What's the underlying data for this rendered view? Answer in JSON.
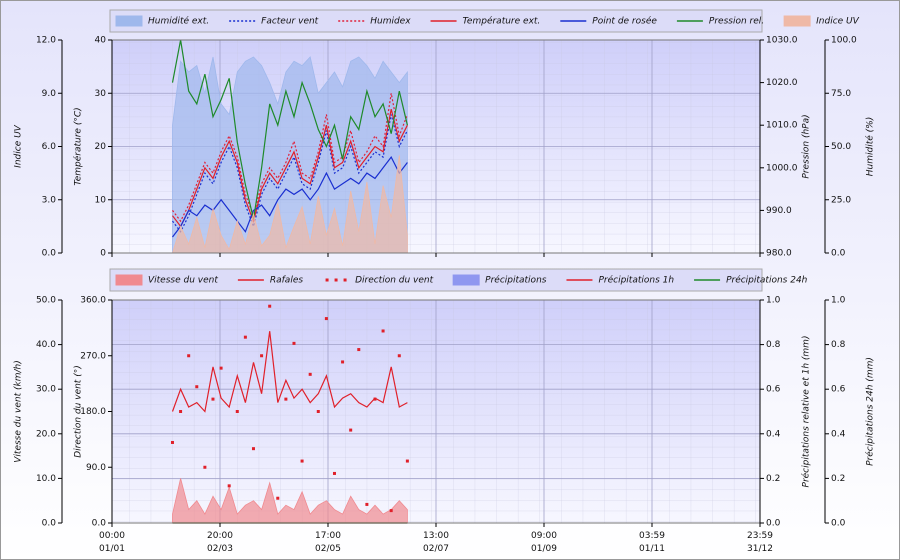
{
  "chart_data": [
    {
      "type": "line",
      "x": [
        0.56,
        0.635,
        0.71,
        0.785,
        0.86,
        0.935,
        1.01,
        1.085,
        1.16,
        1.235,
        1.31,
        1.385,
        1.46,
        1.535,
        1.61,
        1.685,
        1.76,
        1.835,
        1.91,
        1.985,
        2.06,
        2.135,
        2.21,
        2.285,
        2.36,
        2.435,
        2.51,
        2.585,
        2.66,
        2.735
      ],
      "xlim": [
        0,
        6
      ],
      "xticks": [
        {
          "value": 0,
          "label": "00:00 01/01"
        },
        {
          "value": 1,
          "label": "20:00 02/03"
        },
        {
          "value": 2,
          "label": "17:00 02/05"
        },
        {
          "value": 3,
          "label": "13:00 02/07"
        },
        {
          "value": 4,
          "label": "09:00 01/09"
        },
        {
          "value": 5,
          "label": "03:59 01/11"
        },
        {
          "value": 6,
          "label": "23:59 31/12"
        }
      ],
      "axes": [
        {
          "label": "Indice UV",
          "ylim": [
            0,
            12
          ],
          "yticks": [
            {
              "value": 0,
              "label": "0.0"
            },
            {
              "value": 3,
              "label": "3.0"
            },
            {
              "value": 6,
              "label": "6.0"
            },
            {
              "value": 9,
              "label": "9.0"
            },
            {
              "value": 12,
              "label": "12.0"
            }
          ]
        },
        {
          "label": "Température (°C)",
          "ylim": [
            0,
            40
          ],
          "yticks": [
            0,
            10,
            20,
            30,
            40
          ]
        },
        {
          "label": "Pression (hPa)",
          "ylim": [
            980,
            1030
          ],
          "yticks": [
            {
              "value": 980,
              "label": "980.0"
            },
            {
              "value": 990,
              "label": "990.0"
            },
            {
              "value": 1000,
              "label": "1000.0"
            },
            {
              "value": 1010,
              "label": "1010.0"
            },
            {
              "value": 1020,
              "label": "1020.0"
            },
            {
              "value": 1030,
              "label": "1030.0"
            }
          ]
        },
        {
          "label": "Humidité (%)",
          "ylim": [
            0,
            100
          ],
          "yticks": [
            {
              "value": 0,
              "label": "0.0"
            },
            {
              "value": 25,
              "label": "25.0"
            },
            {
              "value": 50,
              "label": "50.0"
            },
            {
              "value": 75,
              "label": "75.0"
            },
            {
              "value": 100,
              "label": "100.0"
            }
          ]
        }
      ],
      "grid": true,
      "series": [
        {
          "name": "Humidité ext.",
          "color": "#9fb8ec",
          "style": "area",
          "axis": 3,
          "values": [
            60,
            90,
            85,
            88,
            75,
            92,
            70,
            65,
            85,
            90,
            92,
            88,
            80,
            70,
            85,
            90,
            88,
            92,
            75,
            80,
            85,
            78,
            90,
            92,
            88,
            82,
            90,
            85,
            80,
            85
          ]
        },
        {
          "name": "Facteur vent",
          "color": "#1a2fd0",
          "style": "dotted",
          "axis": 1,
          "values": [
            6,
            4,
            7,
            11,
            15,
            13,
            17,
            20,
            16,
            9,
            5,
            11,
            14,
            12,
            15,
            18,
            13,
            12,
            17,
            23,
            15,
            16,
            20,
            15,
            17,
            19,
            18,
            26,
            20,
            23
          ]
        },
        {
          "name": "Humidex",
          "color": "#e0203a",
          "style": "dotted",
          "axis": 1,
          "values": [
            8,
            6,
            9,
            13,
            17,
            15,
            19,
            22,
            18,
            11,
            7,
            13,
            16,
            14,
            17,
            21,
            15,
            14,
            19,
            26,
            17,
            18,
            23,
            17,
            19,
            22,
            20,
            30,
            22,
            26
          ]
        },
        {
          "name": "Température ext.",
          "color": "#e0202a",
          "style": "line",
          "axis": 1,
          "values": [
            7,
            5,
            8,
            12,
            16,
            14,
            18,
            21,
            17,
            10,
            6,
            12,
            15,
            13,
            16,
            19,
            14,
            13,
            18,
            24,
            16,
            17,
            21,
            16,
            18,
            20,
            19,
            27,
            21,
            24
          ]
        },
        {
          "name": "Point de rosée",
          "color": "#1a2fd0",
          "style": "line",
          "axis": 1,
          "values": [
            3,
            5,
            8,
            7,
            9,
            8,
            10,
            8,
            6,
            4,
            8,
            9,
            7,
            10,
            12,
            11,
            12,
            10,
            12,
            15,
            12,
            13,
            14,
            13,
            15,
            14,
            16,
            18,
            15,
            17
          ]
        },
        {
          "name": "Pression rel.",
          "color": "#1e8a2a",
          "style": "line",
          "axis": 2,
          "values": [
            1020,
            1030,
            1018,
            1015,
            1022,
            1012,
            1016,
            1021,
            1006,
            996,
            988,
            1000,
            1015,
            1010,
            1018,
            1012,
            1020,
            1015,
            1009,
            1005,
            1010,
            1002,
            1012,
            1009,
            1018,
            1012,
            1015,
            1008,
            1018,
            1010
          ]
        },
        {
          "name": "Indice UV",
          "color": "#efb9a6",
          "style": "area",
          "axis": 0,
          "values": [
            0,
            1.5,
            0.5,
            2,
            0.3,
            2.5,
            1,
            0.2,
            1.8,
            0.5,
            2.2,
            0.4,
            1,
            2.8,
            0.3,
            1.5,
            2.6,
            0.5,
            3.2,
            1,
            2.5,
            0.4,
            3.5,
            1.2,
            4,
            0.5,
            3.8,
            2,
            5.5,
            1
          ]
        }
      ]
    },
    {
      "type": "line",
      "x": [
        0.56,
        0.635,
        0.71,
        0.785,
        0.86,
        0.935,
        1.01,
        1.085,
        1.16,
        1.235,
        1.31,
        1.385,
        1.46,
        1.535,
        1.61,
        1.685,
        1.76,
        1.835,
        1.91,
        1.985,
        2.06,
        2.135,
        2.21,
        2.285,
        2.36,
        2.435,
        2.51,
        2.585,
        2.66,
        2.735
      ],
      "xlim": [
        0,
        6
      ],
      "xticks": [
        {
          "value": 0,
          "label": "00:00 01/01"
        },
        {
          "value": 1,
          "label": "20:00 02/03"
        },
        {
          "value": 2,
          "label": "17:00 02/05"
        },
        {
          "value": 3,
          "label": "13:00 02/07"
        },
        {
          "value": 4,
          "label": "09:00 01/09"
        },
        {
          "value": 5,
          "label": "03:59 01/11"
        },
        {
          "value": 6,
          "label": "23:59 31/12"
        }
      ],
      "axes": [
        {
          "label": "Vitesse du vent (km/h)",
          "ylim": [
            0,
            50
          ],
          "yticks": [
            {
              "value": 0,
              "label": "0.0"
            },
            {
              "value": 10,
              "label": "10.0"
            },
            {
              "value": 20,
              "label": "20.0"
            },
            {
              "value": 30,
              "label": "30.0"
            },
            {
              "value": 40,
              "label": "40.0"
            },
            {
              "value": 50,
              "label": "50.0"
            }
          ]
        },
        {
          "label": "Direction du vent (°)",
          "ylim": [
            0,
            360
          ],
          "yticks": [
            {
              "value": 0,
              "label": "0.0"
            },
            {
              "value": 90,
              "label": "90.0"
            },
            {
              "value": 180,
              "label": "180.0"
            },
            {
              "value": 270,
              "label": "270.0"
            },
            {
              "value": 360,
              "label": "360.0"
            }
          ]
        },
        {
          "label": "Précipitations relative et 1h (mm)",
          "ylim": [
            0,
            1
          ],
          "yticks": [
            {
              "value": 0,
              "label": "0.0"
            },
            {
              "value": 0.2,
              "label": "0.2"
            },
            {
              "value": 0.4,
              "label": "0.4"
            },
            {
              "value": 0.6,
              "label": "0.6"
            },
            {
              "value": 0.8,
              "label": "0.8"
            },
            {
              "value": 1,
              "label": "1.0"
            }
          ]
        },
        {
          "label": "Précipitations 24h (mm)",
          "ylim": [
            0,
            1
          ],
          "yticks": [
            {
              "value": 0,
              "label": "0.0"
            },
            {
              "value": 0.2,
              "label": "0.2"
            },
            {
              "value": 0.4,
              "label": "0.4"
            },
            {
              "value": 0.6,
              "label": "0.6"
            },
            {
              "value": 0.8,
              "label": "0.8"
            },
            {
              "value": 1,
              "label": "1.0"
            }
          ]
        }
      ],
      "grid": true,
      "series": [
        {
          "name": "Vitesse du vent",
          "color": "#f08a90",
          "style": "area",
          "axis": 0,
          "values": [
            2,
            10,
            3,
            5,
            2,
            6,
            3,
            8,
            2,
            4,
            5,
            3,
            9,
            2,
            4,
            3,
            7,
            2,
            4,
            5,
            3,
            2,
            6,
            3,
            2,
            4,
            2,
            3,
            5,
            3
          ]
        },
        {
          "name": "Rafales",
          "color": "#e0202a",
          "style": "line",
          "axis": 0,
          "values": [
            25,
            30,
            26,
            27,
            25,
            35,
            28,
            26,
            33,
            27,
            36,
            29,
            43,
            27,
            32,
            28,
            30,
            27,
            29,
            33,
            26,
            28,
            29,
            27,
            26,
            28,
            27,
            35,
            26,
            27
          ]
        },
        {
          "name": "Direction du vent",
          "color": "#e0202a",
          "style": "points",
          "axis": 1,
          "values": [
            130,
            180,
            270,
            220,
            90,
            200,
            250,
            60,
            180,
            300,
            120,
            270,
            350,
            40,
            200,
            290,
            100,
            240,
            180,
            330,
            80,
            260,
            150,
            280,
            30,
            200,
            310,
            20,
            270,
            100
          ]
        },
        {
          "name": "Précipitations",
          "color": "#8f97f0",
          "style": "area",
          "axis": 2,
          "values": [
            0,
            0,
            0,
            0,
            0,
            0,
            0,
            0,
            0,
            0,
            0,
            0,
            0,
            0,
            0,
            0,
            0,
            0,
            0,
            0,
            0,
            0,
            0,
            0,
            0,
            0,
            0,
            0,
            0,
            0
          ]
        },
        {
          "name": "Précipitations 1h",
          "color": "#e0202a",
          "style": "line",
          "axis": 2,
          "values": [
            0,
            0,
            0,
            0,
            0,
            0,
            0,
            0,
            0,
            0,
            0,
            0,
            0,
            0,
            0,
            0,
            0,
            0,
            0,
            0,
            0,
            0,
            0,
            0,
            0,
            0,
            0,
            0,
            0,
            0
          ]
        },
        {
          "name": "Précipitations 24h",
          "color": "#1e8a2a",
          "style": "line",
          "axis": 3,
          "values": [
            0,
            0,
            0,
            0,
            0,
            0,
            0,
            0,
            0,
            0,
            0,
            0,
            0,
            0,
            0,
            0,
            0,
            0,
            0,
            0,
            0,
            0,
            0,
            0,
            0,
            0,
            0,
            0,
            0,
            0
          ]
        }
      ]
    }
  ]
}
